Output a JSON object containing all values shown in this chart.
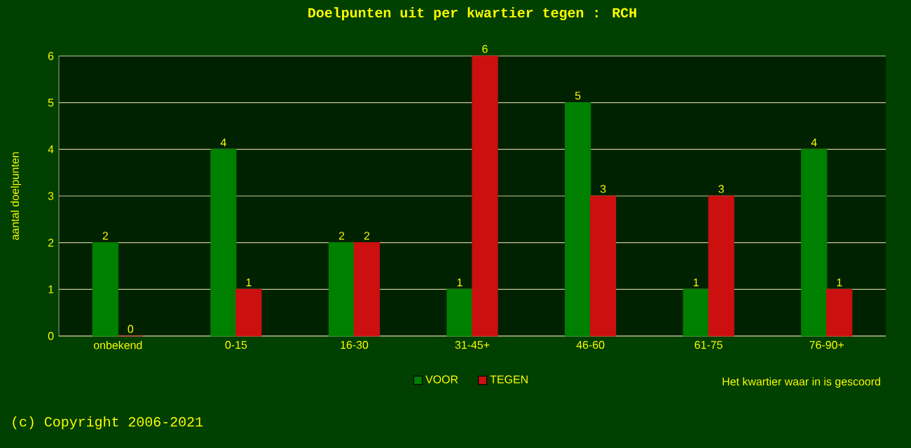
{
  "chart_data": {
    "type": "bar",
    "title": "Doelpunten uit per kwartier tegen : RCH",
    "xlabel": "Het kwartier waar in is gescoord",
    "ylabel": "aantal doelpunten",
    "categories": [
      "onbekend",
      "0-15",
      "16-30",
      "31-45+",
      "46-60",
      "61-75",
      "76-90+"
    ],
    "series": [
      {
        "name": "VOOR",
        "color": "#008000",
        "values": [
          2,
          4,
          2,
          1,
          5,
          1,
          4
        ]
      },
      {
        "name": "TEGEN",
        "color": "#cc1010",
        "values": [
          0,
          1,
          2,
          6,
          3,
          3,
          1
        ]
      }
    ],
    "ylim": [
      0,
      6
    ],
    "yticks": [
      0,
      1,
      2,
      3,
      4,
      5,
      6
    ],
    "grid": "y",
    "legend": "bottom",
    "data_labels": true,
    "annotations": [
      "(c) Copyright 2006-2021"
    ]
  }
}
